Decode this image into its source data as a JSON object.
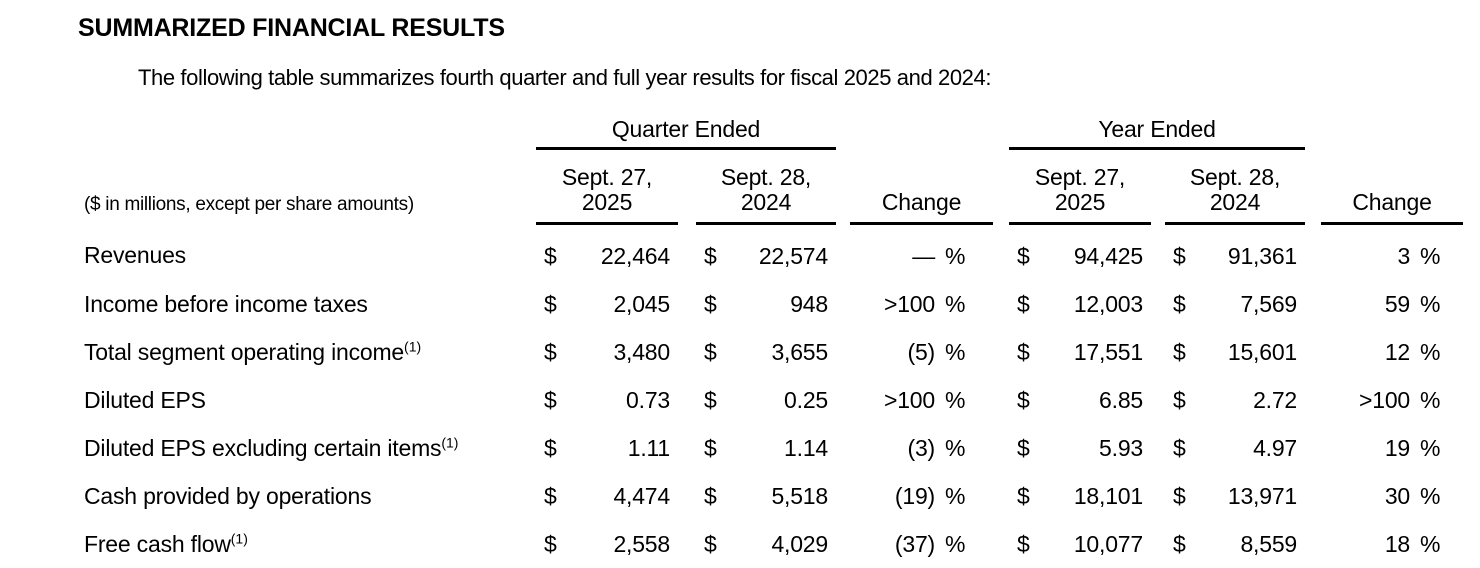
{
  "page": {
    "title": "SUMMARIZED FINANCIAL RESULTS",
    "intro": "The following table summarizes fourth quarter and full year results for fiscal 2025 and 2024:"
  },
  "table": {
    "unit_note": "($ in millions, except per share amounts)",
    "symbols": {
      "currency": "$",
      "percent": "%"
    },
    "groups": {
      "quarter": {
        "label": "Quarter Ended"
      },
      "year": {
        "label": "Year Ended"
      }
    },
    "columns": {
      "q2025_line1": "Sept. 27,",
      "q2025_line2": "2025",
      "q2024_line1": "Sept. 28,",
      "q2024_line2": "2024",
      "y2025_line1": "Sept. 27,",
      "y2025_line2": "2025",
      "y2024_line1": "Sept. 28,",
      "y2024_line2": "2024",
      "change": "Change"
    },
    "rows": [
      {
        "label": "Revenues",
        "sup": "",
        "q2025": "22,464",
        "q2024": "22,574",
        "q_change": "—",
        "y2025": "94,425",
        "y2024": "91,361",
        "y_change": "3"
      },
      {
        "label": "Income before income taxes",
        "sup": "",
        "q2025": "2,045",
        "q2024": "948",
        "q_change": ">100",
        "y2025": "12,003",
        "y2024": "7,569",
        "y_change": "59"
      },
      {
        "label": "Total segment operating income",
        "sup": "(1)",
        "q2025": "3,480",
        "q2024": "3,655",
        "q_change": "(5)",
        "y2025": "17,551",
        "y2024": "15,601",
        "y_change": "12"
      },
      {
        "label": "Diluted EPS",
        "sup": "",
        "q2025": "0.73",
        "q2024": "0.25",
        "q_change": ">100",
        "y2025": "6.85",
        "y2024": "2.72",
        "y_change": ">100"
      },
      {
        "label": "Diluted EPS excluding certain items",
        "sup": "(1)",
        "q2025": "1.11",
        "q2024": "1.14",
        "q_change": "(3)",
        "y2025": "5.93",
        "y2024": "4.97",
        "y_change": "19"
      },
      {
        "label": "Cash provided by operations",
        "sup": "",
        "q2025": "4,474",
        "q2024": "5,518",
        "q_change": "(19)",
        "y2025": "18,101",
        "y2024": "13,971",
        "y_change": "30"
      },
      {
        "label": "Free cash flow",
        "sup": "(1)",
        "q2025": "2,558",
        "q2024": "4,029",
        "q_change": "(37)",
        "y2025": "10,077",
        "y2024": "8,559",
        "y_change": "18"
      }
    ]
  }
}
